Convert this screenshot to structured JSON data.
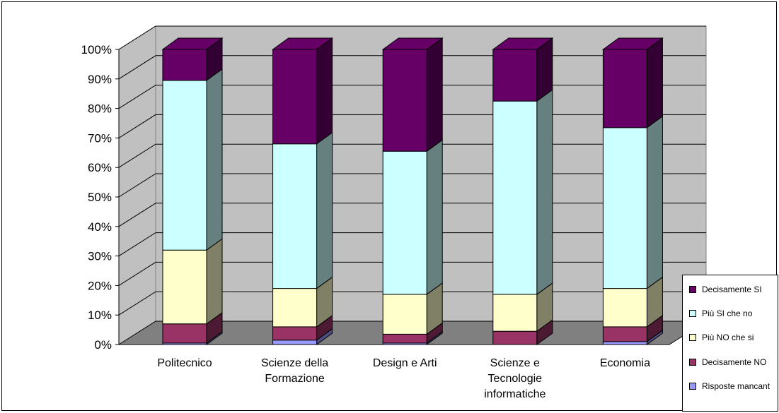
{
  "chart_data": {
    "type": "bar",
    "stacked": true,
    "percent_stacked": true,
    "three_d": true,
    "categories": [
      "Politecnico",
      "Scienze della\nFormazione",
      "Design e Arti",
      "Scienze e\nTecnologie\ninformatiche",
      "Economia"
    ],
    "series": [
      {
        "name": "Risposte mancanti",
        "color": "#9999ff",
        "values": [
          0.5,
          1.5,
          0.5,
          0.0,
          1.0
        ]
      },
      {
        "name": "Decisamente NO",
        "color": "#993366",
        "values": [
          6.5,
          4.5,
          3.0,
          4.5,
          5.0
        ]
      },
      {
        "name": "Più NO che si",
        "color": "#ffffcc",
        "values": [
          25.0,
          13.0,
          13.5,
          12.5,
          13.0
        ]
      },
      {
        "name": "Più SI che no",
        "color": "#ccffff",
        "values": [
          57.5,
          49.0,
          48.5,
          65.5,
          54.5
        ]
      },
      {
        "name": "Decisamente SI",
        "color": "#660066",
        "values": [
          10.5,
          32.0,
          34.5,
          17.5,
          26.5
        ]
      }
    ],
    "yticks": [
      "0%",
      "10%",
      "20%",
      "30%",
      "40%",
      "50%",
      "60%",
      "70%",
      "80%",
      "90%",
      "100%"
    ],
    "ylim": [
      0,
      100
    ],
    "grid": true,
    "legend_position": "right",
    "legend_order": [
      "Decisamente SI",
      "Più SI che no",
      "Più NO che si",
      "Decisamente NO",
      "Risposte mancant"
    ],
    "colors": {
      "wall": "#c0c0c0",
      "floor": "#808080"
    }
  }
}
